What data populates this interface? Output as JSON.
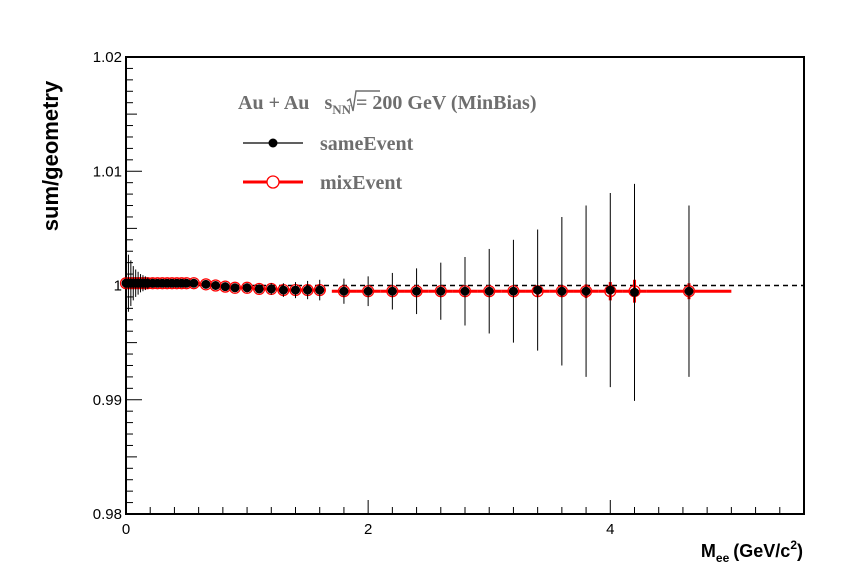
{
  "chart_data": {
    "type": "scatter",
    "title": "",
    "xlabel": "M",
    "xlabel_sub": "ee",
    "xlabel_units": "(GeV/c",
    "xlabel_sup": "2",
    "xlabel_close": ")",
    "ylabel": "sum/geometry",
    "xlim": [
      0,
      5.6
    ],
    "ylim": [
      0.98,
      1.02
    ],
    "x_ticks": [
      0,
      2,
      4
    ],
    "x_tick_labels": [
      "0",
      "2",
      "4"
    ],
    "y_ticks": [
      0.98,
      0.99,
      1.0,
      1.01,
      1.02
    ],
    "y_tick_labels": [
      "0.98",
      "0.99",
      "1",
      "1.01",
      "1.02"
    ],
    "grid": false,
    "legend_position": "top-left",
    "reference_line": 1.0,
    "annotation": {
      "system": "Au + Au",
      "sqrt": "s",
      "sub": "NN",
      "energy": "= 200 GeV (MinBias)"
    },
    "series": [
      {
        "name": "sameEvent",
        "color": "#000000",
        "marker": "filled-circle",
        "x": [
          0.0,
          0.02,
          0.04,
          0.06,
          0.08,
          0.1,
          0.12,
          0.14,
          0.16,
          0.18,
          0.22,
          0.26,
          0.3,
          0.34,
          0.38,
          0.42,
          0.46,
          0.5,
          0.56,
          0.66,
          0.74,
          0.82,
          0.9,
          1.0,
          1.1,
          1.2,
          1.3,
          1.4,
          1.5,
          1.6,
          1.8,
          2.0,
          2.2,
          2.4,
          2.6,
          2.8,
          3.0,
          3.2,
          3.4,
          3.6,
          3.8,
          4.0,
          4.2,
          4.65
        ],
        "y": [
          1.0002,
          1.0002,
          1.0002,
          1.0002,
          1.0002,
          1.0002,
          1.0002,
          1.0002,
          1.0002,
          1.0002,
          1.0002,
          1.0002,
          1.0002,
          1.0002,
          1.0002,
          1.0002,
          1.0002,
          1.0002,
          1.0002,
          1.0001,
          1.0,
          0.9999,
          0.9998,
          0.9998,
          0.9997,
          0.9997,
          0.9996,
          0.9996,
          0.9996,
          0.9996,
          0.9995,
          0.9995,
          0.9995,
          0.9995,
          0.9995,
          0.9995,
          0.9995,
          0.9995,
          0.9996,
          0.9995,
          0.9995,
          0.9996,
          0.9994,
          0.9995
        ],
        "err": [
          0.004,
          0.0025,
          0.002,
          0.0015,
          0.0012,
          0.001,
          0.0008,
          0.0007,
          0.0006,
          0.0005,
          0.0004,
          0.0003,
          0.0003,
          0.0003,
          0.0003,
          0.0003,
          0.0003,
          0.0003,
          0.0003,
          0.0003,
          0.0003,
          0.0003,
          0.0003,
          0.0004,
          0.0004,
          0.0005,
          0.0006,
          0.0007,
          0.0008,
          0.0009,
          0.0011,
          0.0013,
          0.0016,
          0.002,
          0.0025,
          0.003,
          0.0037,
          0.0045,
          0.0053,
          0.0065,
          0.0075,
          0.0085,
          0.0095,
          0.0075
        ]
      },
      {
        "name": "mixEvent",
        "color": "#ff0000",
        "marker": "open-circle",
        "x": [
          0.0,
          0.02,
          0.04,
          0.06,
          0.08,
          0.1,
          0.12,
          0.14,
          0.16,
          0.18,
          0.22,
          0.26,
          0.3,
          0.34,
          0.38,
          0.42,
          0.46,
          0.5,
          0.56,
          0.66,
          0.74,
          0.82,
          0.9,
          1.0,
          1.1,
          1.2,
          1.3,
          1.4,
          1.5,
          1.6,
          1.8,
          2.0,
          2.2,
          2.4,
          2.6,
          2.8,
          3.0,
          3.2,
          3.4,
          3.6,
          3.8,
          4.0,
          4.2,
          4.65
        ],
        "y": [
          1.0002,
          1.0002,
          1.0002,
          1.0002,
          1.0002,
          1.0002,
          1.0002,
          1.0002,
          1.0002,
          1.0002,
          1.0002,
          1.0002,
          1.0002,
          1.0002,
          1.0002,
          1.0002,
          1.0002,
          1.0002,
          1.0002,
          1.0001,
          1.0,
          0.9999,
          0.9998,
          0.9998,
          0.9997,
          0.9997,
          0.9996,
          0.9996,
          0.9996,
          0.9996,
          0.9995,
          0.9995,
          0.9995,
          0.9995,
          0.9995,
          0.9995,
          0.9995,
          0.9995,
          0.9995,
          0.9995,
          0.9995,
          0.9995,
          0.9995,
          0.9995
        ],
        "err": [
          0.0005,
          0.0005,
          0.0005,
          0.0004,
          0.0004,
          0.0004,
          0.0003,
          0.0003,
          0.0003,
          0.0003,
          0.0003,
          0.0003,
          0.0002,
          0.0002,
          0.0002,
          0.0002,
          0.0002,
          0.0002,
          0.0002,
          0.0002,
          0.0002,
          0.0002,
          0.0002,
          0.0002,
          0.0002,
          0.0002,
          0.0002,
          0.0002,
          0.0002,
          0.0002,
          0.0002,
          0.0002,
          0.0002,
          0.0002,
          0.0002,
          0.0002,
          0.0002,
          0.0002,
          0.0004,
          0.0005,
          0.0006,
          0.0008,
          0.001,
          0.0007
        ],
        "xerr": [
          0.01,
          0.01,
          0.01,
          0.01,
          0.01,
          0.01,
          0.01,
          0.01,
          0.01,
          0.01,
          0.02,
          0.02,
          0.02,
          0.02,
          0.02,
          0.02,
          0.02,
          0.02,
          0.05,
          0.04,
          0.04,
          0.04,
          0.04,
          0.05,
          0.05,
          0.05,
          0.05,
          0.05,
          0.05,
          0.05,
          0.1,
          0.1,
          0.1,
          0.1,
          0.1,
          0.1,
          0.1,
          0.1,
          0.1,
          0.1,
          0.1,
          0.1,
          0.1,
          0.35
        ]
      }
    ]
  }
}
